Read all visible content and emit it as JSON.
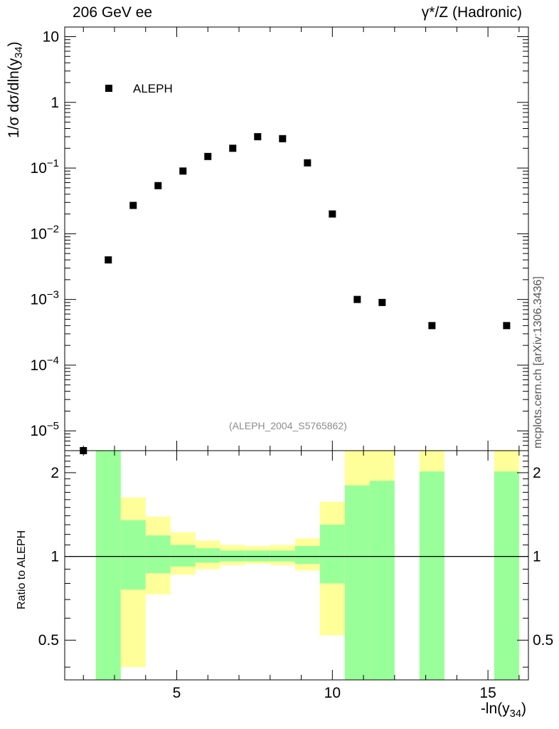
{
  "header": {
    "left_title": "206 GeV ee",
    "right_title": "γ*/Z (Hadronic)"
  },
  "side_label": "mcplots.cern.ch [arXiv:1306.3436]",
  "reference_label": "(ALEPH_2004_S5765862)",
  "legend": {
    "entry": "ALEPH"
  },
  "axes": {
    "main_ylabel_prefix": "1/σ  dσ/dln(y",
    "main_ylabel_sub": "34",
    "main_ylabel_suffix": ")",
    "ratio_ylabel": "Ratio to ALEPH",
    "xlabel_prefix": "-ln(y",
    "xlabel_sub": "34",
    "xlabel_suffix": ")"
  },
  "chart_data": {
    "type": "scatter",
    "title": "206 GeV ee",
    "subtitle": "γ*/Z (Hadronic)",
    "xlabel": "-ln(y34)",
    "ylabel": "1/σ dσ/dln(y34)",
    "xlim": [
      1.4,
      16.3
    ],
    "ylim": [
      5e-06,
      14
    ],
    "yscale": "log",
    "x_ticks": [
      5,
      10,
      15
    ],
    "y_ticks": [
      {
        "value": 10,
        "label": "10"
      },
      {
        "value": 1,
        "label": "1"
      },
      {
        "value": 0.1,
        "label": "10−1"
      },
      {
        "value": 0.01,
        "label": "10−2"
      },
      {
        "value": 0.001,
        "label": "10−3"
      },
      {
        "value": 0.0001,
        "label": "10−4"
      },
      {
        "value": 1e-05,
        "label": "10−5"
      }
    ],
    "series": [
      {
        "name": "ALEPH",
        "x": [
          2.0,
          2.8,
          3.6,
          4.4,
          5.2,
          6.0,
          6.8,
          7.6,
          8.4,
          9.2,
          10.0,
          10.8,
          11.6,
          13.2,
          15.6
        ],
        "y": [
          5e-06,
          0.004,
          0.027,
          0.054,
          0.09,
          0.15,
          0.2,
          0.3,
          0.28,
          0.12,
          0.02,
          0.001,
          0.0009,
          0.0004,
          0.0004
        ]
      }
    ],
    "ratio": {
      "ylabel": "Ratio to ALEPH",
      "ylim": [
        0.36,
        2.4
      ],
      "yscale": "log",
      "y_ticks": [
        {
          "value": 0.5,
          "label": "0.5"
        },
        {
          "value": 1,
          "label": "1"
        },
        {
          "value": 2,
          "label": "2"
        }
      ],
      "reference_line": 1,
      "bands": [
        {
          "x0": 2.4,
          "x1": 3.2,
          "stat": [
            0.36,
            2.4
          ],
          "total": [
            0.36,
            2.4
          ]
        },
        {
          "x0": 3.2,
          "x1": 4.0,
          "stat": [
            0.76,
            1.35
          ],
          "total": [
            0.4,
            1.63
          ]
        },
        {
          "x0": 4.0,
          "x1": 4.8,
          "stat": [
            0.87,
            1.19
          ],
          "total": [
            0.73,
            1.39
          ]
        },
        {
          "x0": 4.8,
          "x1": 5.6,
          "stat": [
            0.92,
            1.1
          ],
          "total": [
            0.86,
            1.22
          ]
        },
        {
          "x0": 5.6,
          "x1": 6.4,
          "stat": [
            0.95,
            1.07
          ],
          "total": [
            0.9,
            1.14
          ]
        },
        {
          "x0": 6.4,
          "x1": 7.2,
          "stat": [
            0.96,
            1.05
          ],
          "total": [
            0.93,
            1.1
          ]
        },
        {
          "x0": 7.2,
          "x1": 8.0,
          "stat": [
            0.96,
            1.05
          ],
          "total": [
            0.94,
            1.09
          ]
        },
        {
          "x0": 8.0,
          "x1": 8.8,
          "stat": [
            0.96,
            1.05
          ],
          "total": [
            0.93,
            1.1
          ]
        },
        {
          "x0": 8.8,
          "x1": 9.6,
          "stat": [
            0.94,
            1.09
          ],
          "total": [
            0.89,
            1.16
          ]
        },
        {
          "x0": 9.6,
          "x1": 10.4,
          "stat": [
            0.8,
            1.3
          ],
          "total": [
            0.52,
            1.57
          ]
        },
        {
          "x0": 10.4,
          "x1": 11.2,
          "stat": [
            0.36,
            1.8
          ],
          "total": [
            0.36,
            2.4
          ]
        },
        {
          "x0": 11.2,
          "x1": 12.0,
          "stat": [
            0.36,
            1.87
          ],
          "total": [
            0.36,
            2.4
          ]
        },
        {
          "x0": 12.8,
          "x1": 13.6,
          "stat": [
            0.36,
            2.02
          ],
          "total": [
            0.36,
            2.4
          ]
        },
        {
          "x0": 15.2,
          "x1": 16.0,
          "stat": [
            0.36,
            2.02
          ],
          "total": [
            0.36,
            2.4
          ]
        }
      ]
    },
    "colors": {
      "stat_band": "#99ff99",
      "total_band": "#ffff99",
      "marker": "#000000",
      "axis": "#000000"
    }
  }
}
